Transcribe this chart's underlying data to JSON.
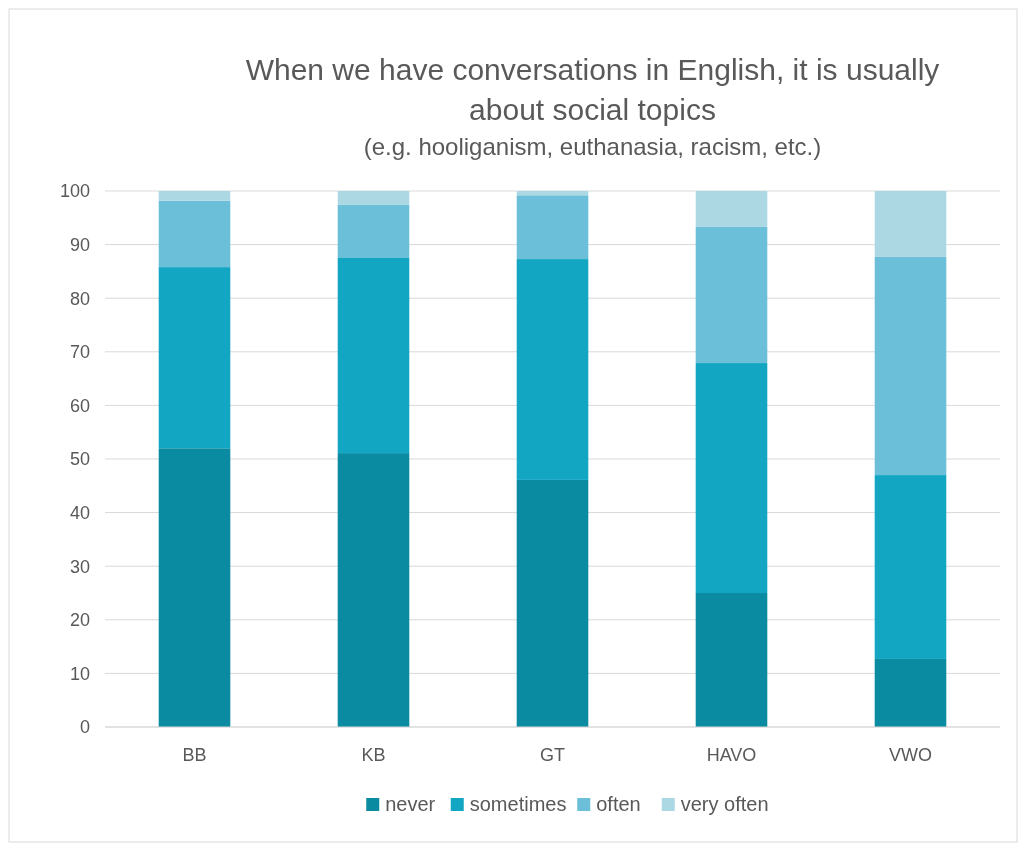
{
  "chart_data": {
    "type": "bar",
    "stacked": true,
    "title": "When we have conversations in English, it is usually about social topics",
    "subtitle": "(e.g. hooliganism, euthanasia, racism, etc.)",
    "categories": [
      "BB",
      "KB",
      "GT",
      "HAVO",
      "VWO"
    ],
    "series": [
      {
        "name": "never",
        "color": "#0b8ba1",
        "values": [
          52,
          51.1,
          46.1,
          25,
          12.7
        ]
      },
      {
        "name": "sometimes",
        "color": "#12a6c2",
        "values": [
          33.8,
          36.4,
          41.2,
          42.9,
          34.3
        ]
      },
      {
        "name": "often",
        "color": "#6bbfd8",
        "values": [
          12.4,
          9.9,
          11.9,
          25.4,
          40.7
        ]
      },
      {
        "name": "very often",
        "color": "#acd8e4",
        "values": [
          1.8,
          2.6,
          0.8,
          6.7,
          12.3
        ]
      }
    ],
    "ylim": [
      0,
      100
    ],
    "yticks": [
      0,
      10,
      20,
      30,
      40,
      50,
      60,
      70,
      80,
      90,
      100
    ],
    "grid": "y",
    "legend": "bottom"
  }
}
